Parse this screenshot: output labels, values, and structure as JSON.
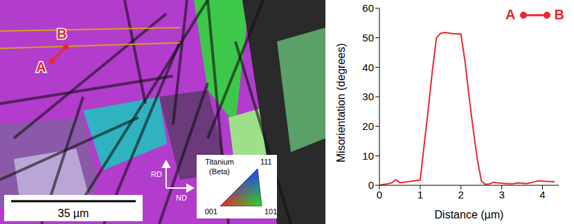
{
  "chart_data": {
    "type": "line",
    "x_label": "Distance (µm)",
    "y_label": "Misorientation (degrees)",
    "annotations": [
      "A",
      "B"
    ],
    "legend": "top-right",
    "grid": false,
    "xlim": [
      0,
      4.4
    ],
    "xticks": [
      0,
      1,
      2,
      3,
      4
    ],
    "ylim": [
      0,
      60
    ],
    "yticks": [
      0,
      10,
      20,
      30,
      40,
      50,
      60
    ],
    "x": [
      0,
      0.1,
      0.2,
      0.3,
      0.4,
      0.5,
      0.6,
      0.7,
      0.8,
      0.9,
      1.0,
      1.1,
      1.2,
      1.3,
      1.4,
      1.5,
      1.6,
      1.7,
      1.8,
      1.9,
      2.0,
      2.1,
      2.2,
      2.3,
      2.4,
      2.5,
      2.6,
      2.7,
      2.8,
      2.9,
      3.0,
      3.1,
      3.2,
      3.3,
      3.4,
      3.5,
      3.6,
      3.7,
      3.8,
      3.9,
      4.0,
      4.1,
      4.2,
      4.3
    ],
    "series": [
      {
        "color": "#e8262d",
        "marker": "none",
        "line_style": "solid",
        "values": [
          0,
          0.3,
          0.5,
          0.8,
          1.9,
          0.9,
          1.0,
          1.2,
          1.4,
          1.6,
          1.8,
          14,
          26,
          39,
          50,
          51.5,
          51.8,
          51.6,
          51.4,
          51.3,
          51.2,
          42,
          30,
          19,
          9,
          1.5,
          0.3,
          0.5,
          1.0,
          0.8,
          0.7,
          0.6,
          0.5,
          0.6,
          0.8,
          0.7,
          0.6,
          0.8,
          1.2,
          1.5,
          1.4,
          1.3,
          1.3,
          1.2
        ]
      }
    ]
  },
  "map": {
    "points": [
      "A",
      "B"
    ],
    "scale_bar": "35 µm",
    "directions": [
      "RD",
      "ND"
    ],
    "color_key": {
      "title": "Titanium",
      "subtitle": "(Beta)",
      "corners": [
        "111",
        "001",
        "101"
      ]
    }
  }
}
